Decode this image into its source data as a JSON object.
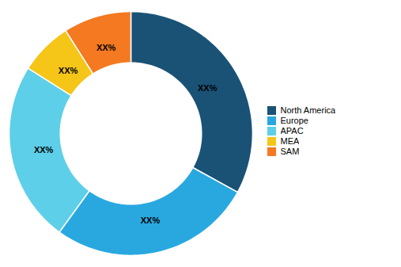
{
  "chart_data": {
    "type": "donut",
    "categories": [
      "North America",
      "Europe",
      "APAC",
      "MEA",
      "SAM"
    ],
    "values": [
      33,
      27,
      24,
      7,
      9
    ],
    "colors": [
      "#1a5276",
      "#29a8e0",
      "#5dcfe8",
      "#f5c518",
      "#f47920"
    ],
    "value_labels": [
      "XX%",
      "XX%",
      "XX%",
      "XX%",
      "XX%"
    ],
    "data_labels": true,
    "legend": "right"
  }
}
